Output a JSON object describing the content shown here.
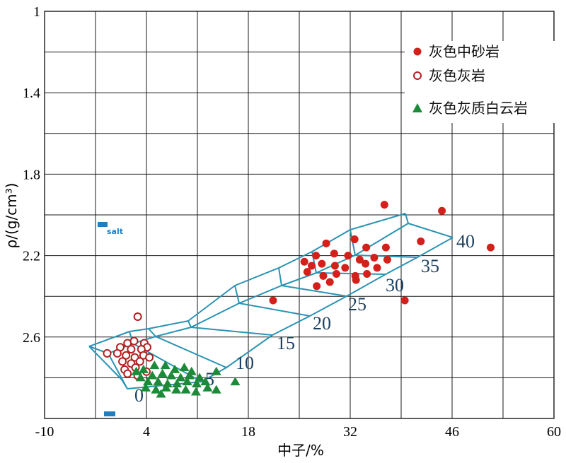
{
  "chart_data": {
    "type": "scatter",
    "xlabel": "中子/%",
    "ylabel": "ρ/(g/cm³)",
    "xlim": [
      -10,
      60
    ],
    "ylim": [
      3.0,
      1.0
    ],
    "x_ticks": [
      "-10",
      "4",
      "18",
      "32",
      "46",
      "60"
    ],
    "y_ticks": [
      "1",
      "1.4",
      "1.8",
      "2.2",
      "2.6"
    ],
    "grid": true,
    "legend": "top-right",
    "colors": {
      "grid": "#1a1a1a",
      "overlay": "#2a93b3",
      "sandstone": "#d4201a",
      "limestone": "#b02020",
      "dolomite": "#1d8a3a",
      "salt": "#1f7fc0",
      "porosity_label": "#1b3f5e"
    },
    "series": [
      {
        "name": "灰色中砂岩",
        "marker": "filled-circle",
        "points": [
          [
            36.7,
            1.95
          ],
          [
            44.6,
            1.98
          ],
          [
            51.3,
            2.16
          ],
          [
            41.7,
            2.13
          ],
          [
            32.6,
            2.12
          ],
          [
            28.7,
            2.14
          ],
          [
            34.2,
            2.16
          ],
          [
            36.9,
            2.16
          ],
          [
            25.7,
            2.23
          ],
          [
            27.3,
            2.2
          ],
          [
            29.8,
            2.19
          ],
          [
            31.7,
            2.2
          ],
          [
            33.3,
            2.22
          ],
          [
            35.3,
            2.21
          ],
          [
            37.1,
            2.22
          ],
          [
            26.7,
            2.25
          ],
          [
            28.1,
            2.24
          ],
          [
            29.9,
            2.25
          ],
          [
            31.3,
            2.26
          ],
          [
            34.1,
            2.24
          ],
          [
            35.7,
            2.26
          ],
          [
            26.1,
            2.28
          ],
          [
            28.3,
            2.3
          ],
          [
            30.1,
            2.29
          ],
          [
            32.7,
            2.3
          ],
          [
            34.3,
            2.29
          ],
          [
            29.2,
            2.33
          ],
          [
            32.8,
            2.32
          ],
          [
            27.4,
            2.35
          ],
          [
            39.5,
            2.42
          ],
          [
            21.4,
            2.42
          ]
        ]
      },
      {
        "name": "灰色灰岩",
        "marker": "open-circle",
        "points": [
          [
            2.8,
            2.5
          ],
          [
            1.4,
            2.63
          ],
          [
            2.3,
            2.62
          ],
          [
            3.7,
            2.63
          ],
          [
            4.1,
            2.65
          ],
          [
            0.4,
            2.65
          ],
          [
            1.9,
            2.66
          ],
          [
            3.3,
            2.66
          ],
          [
            -1.4,
            2.68
          ],
          [
            0.0,
            2.68
          ],
          [
            1.2,
            2.69
          ],
          [
            2.4,
            2.7
          ],
          [
            3.6,
            2.69
          ],
          [
            4.4,
            2.7
          ],
          [
            0.7,
            2.72
          ],
          [
            1.9,
            2.73
          ],
          [
            3.1,
            2.72
          ],
          [
            1.0,
            2.76
          ],
          [
            2.5,
            2.75
          ],
          [
            4.0,
            2.77
          ],
          [
            1.4,
            2.78
          ],
          [
            2.8,
            2.79
          ]
        ]
      },
      {
        "name": "灰色灰质白云岩",
        "marker": "filled-triangle",
        "points": [
          [
            2.6,
            2.77
          ],
          [
            3.6,
            2.76
          ],
          [
            5.1,
            2.74
          ],
          [
            6.6,
            2.74
          ],
          [
            7.9,
            2.76
          ],
          [
            9.2,
            2.75
          ],
          [
            10.2,
            2.77
          ],
          [
            3.2,
            2.8
          ],
          [
            4.8,
            2.79
          ],
          [
            6.2,
            2.78
          ],
          [
            7.4,
            2.79
          ],
          [
            8.7,
            2.8
          ],
          [
            9.9,
            2.79
          ],
          [
            11.3,
            2.8
          ],
          [
            13.6,
            2.77
          ],
          [
            4.2,
            2.82
          ],
          [
            5.6,
            2.82
          ],
          [
            6.9,
            2.83
          ],
          [
            8.2,
            2.83
          ],
          [
            9.6,
            2.82
          ],
          [
            10.9,
            2.83
          ],
          [
            12.1,
            2.82
          ],
          [
            16.2,
            2.82
          ],
          [
            3.9,
            2.85
          ],
          [
            5.3,
            2.86
          ],
          [
            6.7,
            2.85
          ],
          [
            8.1,
            2.86
          ],
          [
            9.4,
            2.86
          ],
          [
            10.8,
            2.87
          ],
          [
            12.4,
            2.85
          ],
          [
            13.6,
            2.86
          ],
          [
            6.0,
            2.88
          ]
        ]
      }
    ],
    "annotations": {
      "salt_label": "salt",
      "porosity_labels": [
        "0",
        "5",
        "10",
        "15",
        "20",
        "25",
        "30",
        "35",
        "40"
      ]
    }
  }
}
